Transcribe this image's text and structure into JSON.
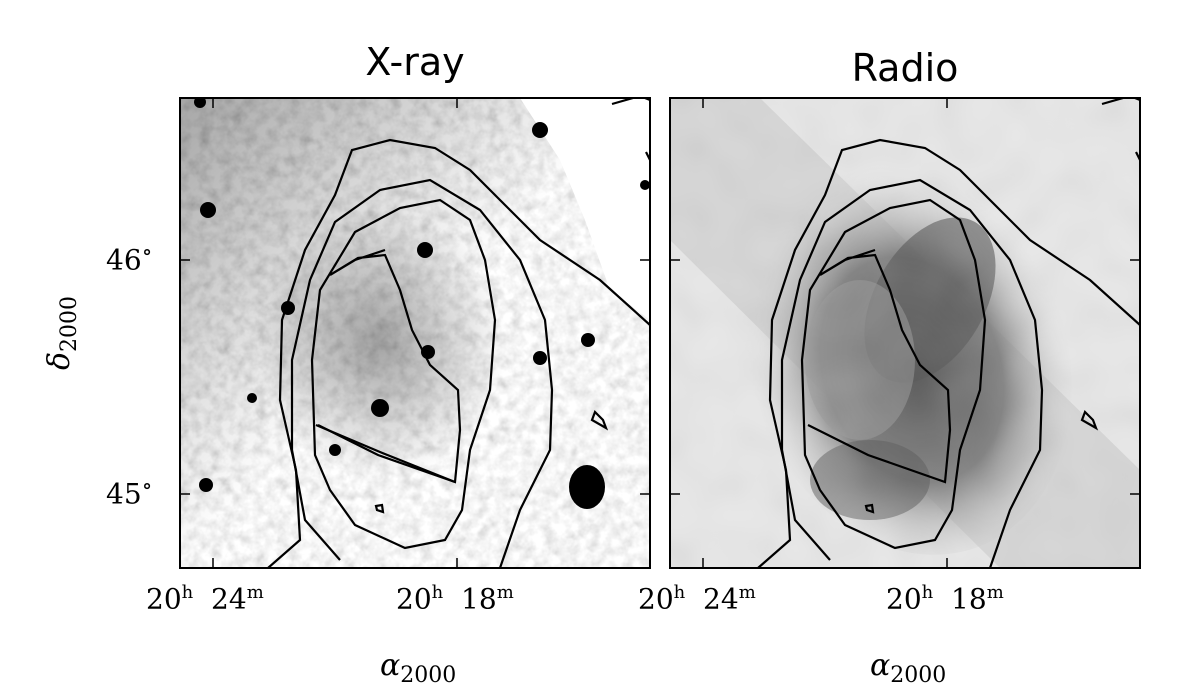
{
  "panels": [
    {
      "title": "X-ray"
    },
    {
      "title": "Radio"
    }
  ],
  "axes": {
    "ylabel": "δ",
    "ylabel_sub": "2000",
    "xlabel": "α",
    "xlabel_sub": "2000",
    "yticks": [
      {
        "deg": "46",
        "sym": "∘"
      },
      {
        "deg": "45",
        "sym": "∘"
      }
    ],
    "xticks": [
      {
        "h": "20",
        "hu": "h",
        "m": "24",
        "mu": "m"
      },
      {
        "h": "20",
        "hu": "h",
        "m": "18",
        "mu": "m"
      }
    ]
  },
  "colors": {
    "contour": "#000000",
    "frame": "#000000"
  }
}
